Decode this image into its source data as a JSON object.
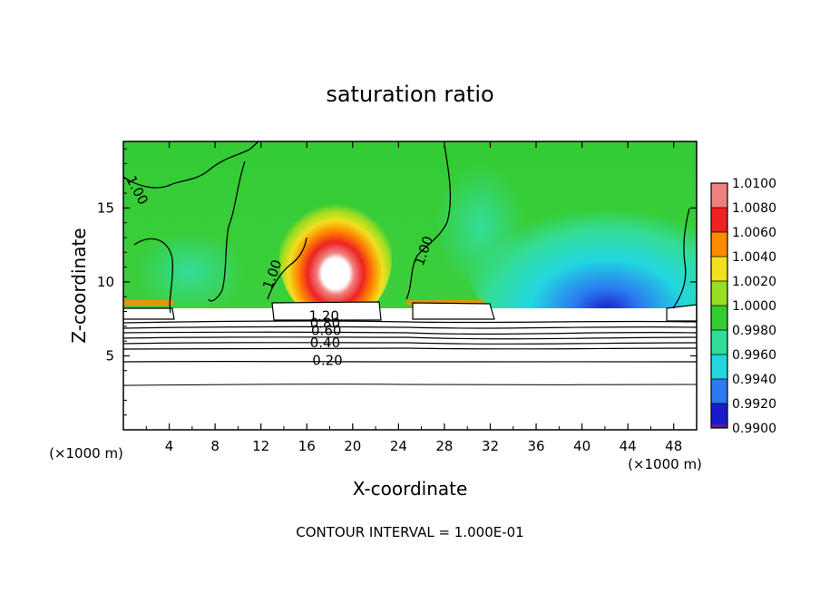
{
  "chart_data": {
    "type": "heatmap",
    "title": "saturation ratio",
    "xlabel": "X-coordinate",
    "ylabel": "Z-coordinate",
    "x_unit": "(×1000 m)",
    "y_unit": "(×1000 m)",
    "xlim": [
      0,
      50
    ],
    "ylim": [
      0,
      19.5
    ],
    "x_ticks": [
      4,
      8,
      12,
      16,
      20,
      24,
      28,
      32,
      36,
      40,
      44,
      48
    ],
    "y_ticks": [
      5,
      10,
      15
    ],
    "colorbar": {
      "levels": [
        0.99,
        0.992,
        0.994,
        0.996,
        0.998,
        1.0,
        1.002,
        1.004,
        1.006,
        1.008,
        1.01
      ],
      "labels": [
        "0.9900",
        "0.9920",
        "0.9940",
        "0.9960",
        "0.9980",
        "1.0000",
        "1.0020",
        "1.0040",
        "1.0060",
        "1.0080",
        "1.0100"
      ],
      "colors": [
        "#5a1aa0",
        "#1a1acc",
        "#2a7af0",
        "#22d6e0",
        "#33dd99",
        "#33cc33",
        "#99dd22",
        "#f0e020",
        "#ff8c00",
        "#ee2222",
        "#f08080"
      ]
    },
    "contour_labels": [
      {
        "text": "1.20",
        "x": 17.5,
        "y": 7.7
      },
      {
        "text": "0.80",
        "x": 17.6,
        "y": 7.2
      },
      {
        "text": "0.60",
        "x": 17.7,
        "y": 6.7
      },
      {
        "text": "0.40",
        "x": 17.6,
        "y": 5.9
      },
      {
        "text": "0.20",
        "x": 17.8,
        "y": 4.7
      },
      {
        "text": "1.00",
        "x": 13.0,
        "y": 10.5
      },
      {
        "text": "1.00",
        "x": 26.2,
        "y": 12.1
      },
      {
        "text": "1.00",
        "x": 1.2,
        "y": 16.2
      }
    ],
    "footer": "CONTOUR INTERVAL = 1.000E-01"
  }
}
